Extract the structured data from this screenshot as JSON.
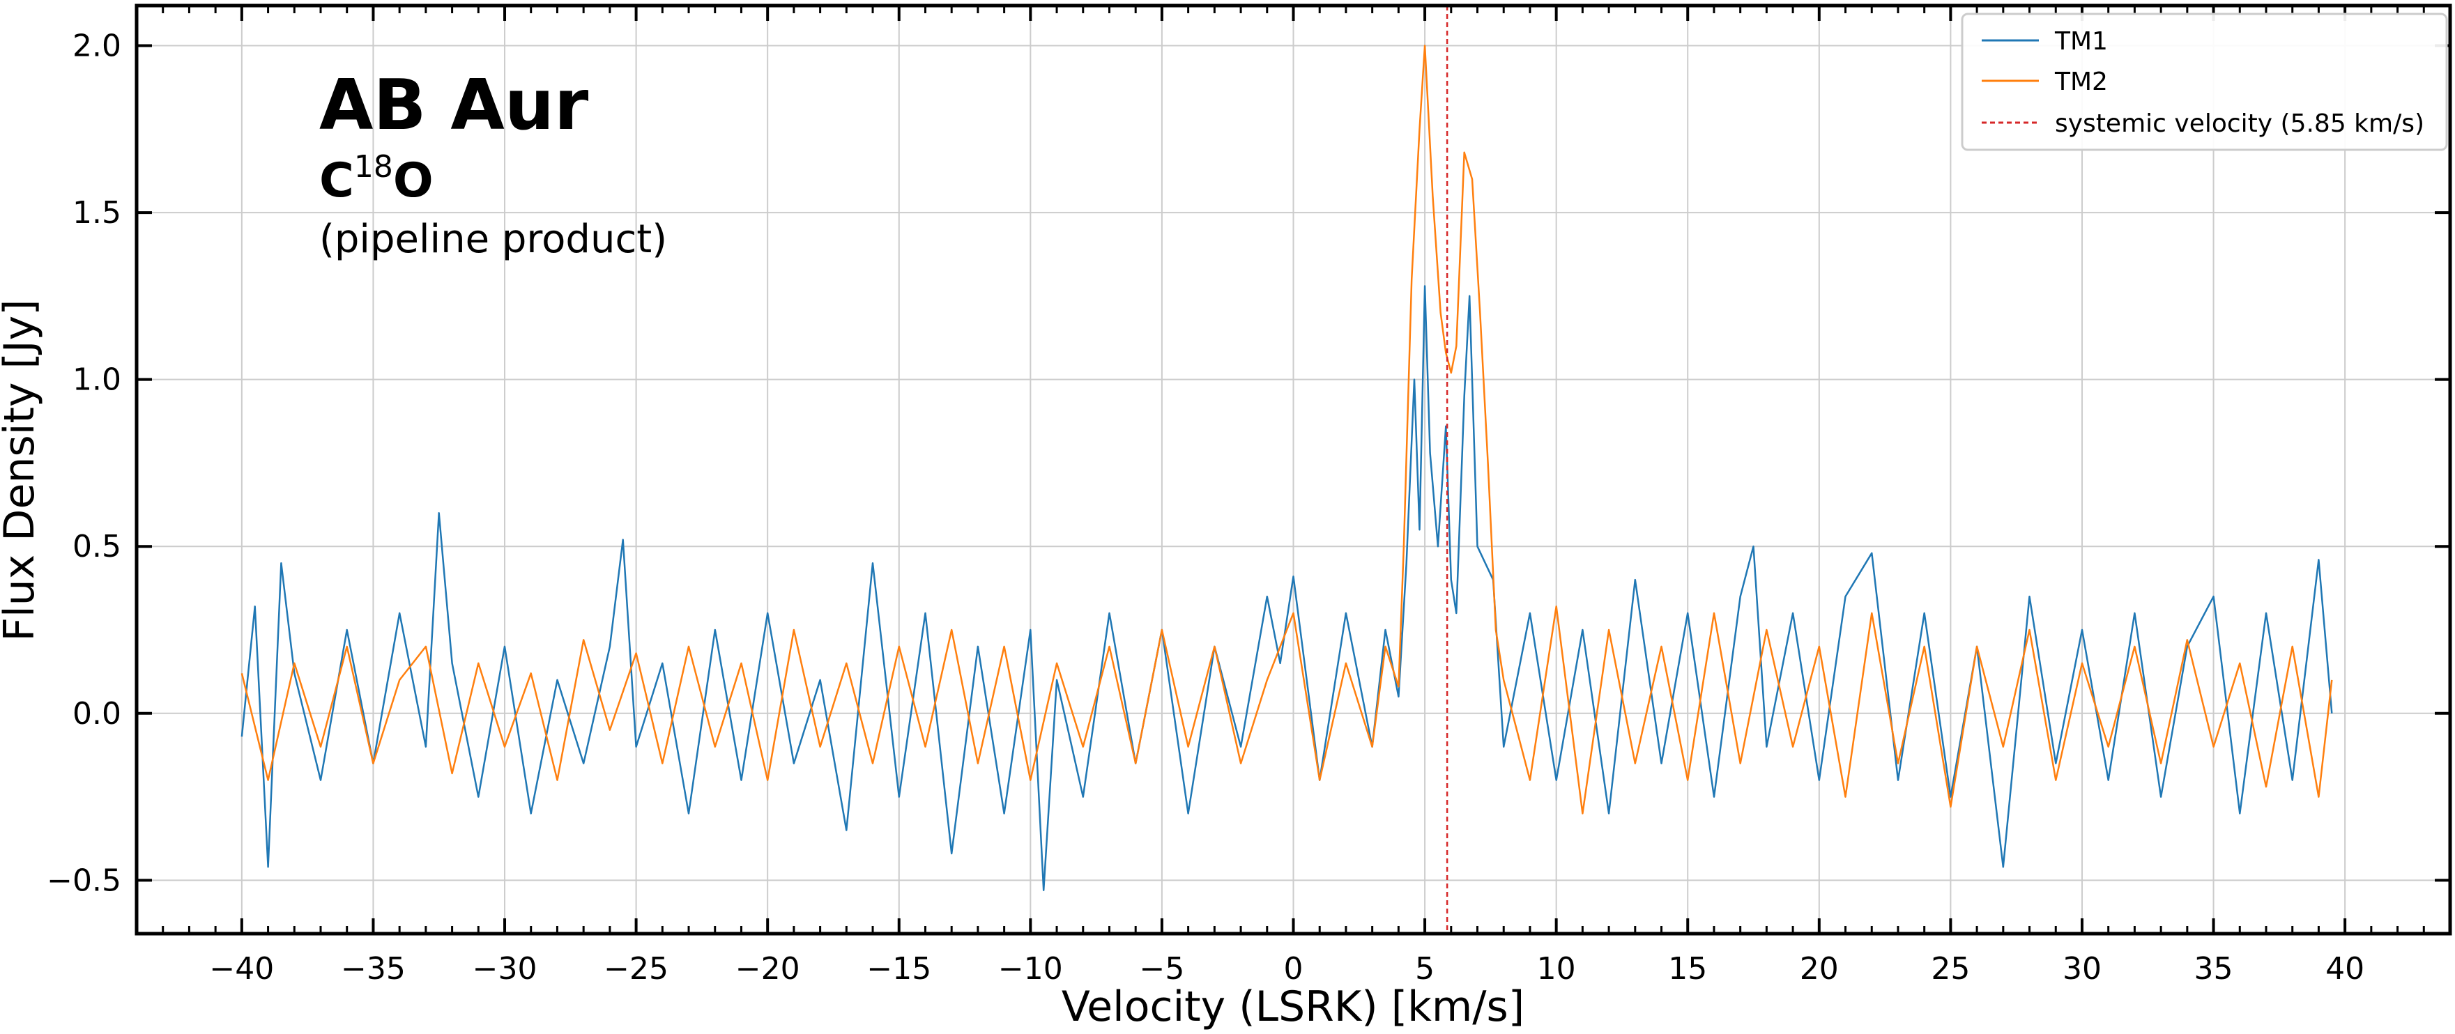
{
  "chart_data": {
    "type": "line",
    "xlabel": "Velocity (LSRK) [km/s]",
    "ylabel": "Flux Density [Jy]",
    "xlim": [
      -44,
      44
    ],
    "ylim": [
      -0.66,
      2.12
    ],
    "xticks": [
      -40,
      -35,
      -30,
      -25,
      -20,
      -15,
      -10,
      -5,
      0,
      5,
      10,
      15,
      20,
      25,
      30,
      35,
      40
    ],
    "xtick_labels": [
      "−40",
      "−35",
      "−30",
      "−25",
      "−20",
      "−15",
      "−10",
      "−5",
      "0",
      "5",
      "10",
      "15",
      "20",
      "25",
      "30",
      "35",
      "40"
    ],
    "yticks": [
      -0.5,
      0.0,
      0.5,
      1.0,
      1.5,
      2.0
    ],
    "ytick_labels": [
      "−0.5",
      "0.0",
      "0.5",
      "1.0",
      "1.5",
      "2.0"
    ],
    "grid": true,
    "legend_position": "top-right",
    "annotations": {
      "title": "AB Aur",
      "molecule_prefix": "C",
      "molecule_superscript": "18",
      "molecule_suffix": "O",
      "note": "(pipeline product)"
    },
    "systemic_velocity": 5.85,
    "series": [
      {
        "name": "TM1",
        "color": "#1f77b4",
        "x": [
          -40,
          -39.5,
          -39,
          -38.5,
          -38,
          -37,
          -36,
          -35,
          -34,
          -33,
          -32.5,
          -32,
          -31,
          -30,
          -29,
          -28,
          -27,
          -26,
          -25.5,
          -25,
          -24,
          -23,
          -22,
          -21,
          -20,
          -19,
          -18,
          -17,
          -16,
          -15,
          -14,
          -13,
          -12,
          -11,
          -10,
          -9.5,
          -9,
          -8,
          -7,
          -6,
          -5,
          -4,
          -3,
          -2,
          -1,
          -0.5,
          0,
          1,
          2,
          3,
          3.5,
          4,
          4.3,
          4.6,
          4.8,
          5.0,
          5.2,
          5.5,
          5.8,
          6.0,
          6.2,
          6.5,
          6.7,
          7.0,
          7.3,
          7.6,
          8,
          9,
          10,
          11,
          12,
          13,
          14,
          15,
          16,
          17,
          17.5,
          18,
          19,
          20,
          21,
          22,
          23,
          24,
          25,
          26,
          27,
          28,
          29,
          30,
          31,
          32,
          33,
          34,
          35,
          36,
          37,
          38,
          39,
          39.5
        ],
        "y": [
          -0.07,
          0.32,
          -0.46,
          0.45,
          0.12,
          -0.2,
          0.25,
          -0.15,
          0.3,
          -0.1,
          0.6,
          0.15,
          -0.25,
          0.2,
          -0.3,
          0.1,
          -0.15,
          0.2,
          0.52,
          -0.1,
          0.15,
          -0.3,
          0.25,
          -0.2,
          0.3,
          -0.15,
          0.1,
          -0.35,
          0.45,
          -0.25,
          0.3,
          -0.42,
          0.2,
          -0.3,
          0.25,
          -0.53,
          0.1,
          -0.25,
          0.3,
          -0.15,
          0.25,
          -0.3,
          0.2,
          -0.1,
          0.35,
          0.15,
          0.41,
          -0.2,
          0.3,
          -0.1,
          0.25,
          0.05,
          0.45,
          1.0,
          0.55,
          1.28,
          0.78,
          0.5,
          0.86,
          0.4,
          0.3,
          0.95,
          1.25,
          0.5,
          0.45,
          0.4,
          -0.1,
          0.3,
          -0.2,
          0.25,
          -0.3,
          0.4,
          -0.15,
          0.3,
          -0.25,
          0.35,
          0.5,
          -0.1,
          0.3,
          -0.2,
          0.35,
          0.48,
          -0.2,
          0.3,
          -0.25,
          0.2,
          -0.46,
          0.35,
          -0.15,
          0.25,
          -0.2,
          0.3,
          -0.25,
          0.2,
          0.35,
          -0.3,
          0.3,
          -0.2,
          0.46,
          0.0
        ]
      },
      {
        "name": "TM2",
        "color": "#ff7f0e",
        "x": [
          -40,
          -39,
          -38,
          -37,
          -36,
          -35,
          -34,
          -33,
          -32,
          -31,
          -30,
          -29,
          -28,
          -27,
          -26,
          -25,
          -24,
          -23,
          -22,
          -21,
          -20,
          -19,
          -18,
          -17,
          -16,
          -15,
          -14,
          -13,
          -12,
          -11,
          -10,
          -9,
          -8,
          -7,
          -6,
          -5,
          -4,
          -3,
          -2,
          -1,
          0,
          1,
          2,
          3,
          3.5,
          4,
          4.2,
          4.5,
          4.8,
          5.0,
          5.3,
          5.6,
          5.8,
          6.0,
          6.2,
          6.5,
          6.8,
          7.1,
          7.4,
          7.7,
          8,
          9,
          10,
          11,
          12,
          13,
          14,
          15,
          16,
          17,
          18,
          19,
          20,
          21,
          22,
          23,
          24,
          25,
          26,
          27,
          28,
          29,
          30,
          31,
          32,
          33,
          34,
          35,
          36,
          37,
          38,
          39,
          39.5
        ],
        "y": [
          0.12,
          -0.2,
          0.15,
          -0.1,
          0.2,
          -0.15,
          0.1,
          0.2,
          -0.18,
          0.15,
          -0.1,
          0.12,
          -0.2,
          0.22,
          -0.05,
          0.18,
          -0.15,
          0.2,
          -0.1,
          0.15,
          -0.2,
          0.25,
          -0.1,
          0.15,
          -0.15,
          0.2,
          -0.1,
          0.25,
          -0.15,
          0.2,
          -0.2,
          0.15,
          -0.1,
          0.2,
          -0.15,
          0.25,
          -0.1,
          0.2,
          -0.15,
          0.1,
          0.3,
          -0.2,
          0.15,
          -0.1,
          0.2,
          0.08,
          0.5,
          1.3,
          1.75,
          2.0,
          1.55,
          1.2,
          1.08,
          1.02,
          1.1,
          1.68,
          1.6,
          1.2,
          0.75,
          0.25,
          0.1,
          -0.2,
          0.32,
          -0.3,
          0.25,
          -0.15,
          0.2,
          -0.2,
          0.3,
          -0.15,
          0.25,
          -0.1,
          0.2,
          -0.25,
          0.3,
          -0.15,
          0.2,
          -0.28,
          0.2,
          -0.1,
          0.25,
          -0.2,
          0.15,
          -0.1,
          0.2,
          -0.15,
          0.22,
          -0.1,
          0.15,
          -0.22,
          0.2,
          -0.25,
          0.1
        ]
      }
    ],
    "legend": [
      {
        "label": "TM1",
        "color": "#1f77b4",
        "style": "solid"
      },
      {
        "label": "TM2",
        "color": "#ff7f0e",
        "style": "solid"
      },
      {
        "label": "systemic velocity (5.85 km/s)",
        "color": "#d62728",
        "style": "dashed"
      }
    ]
  }
}
